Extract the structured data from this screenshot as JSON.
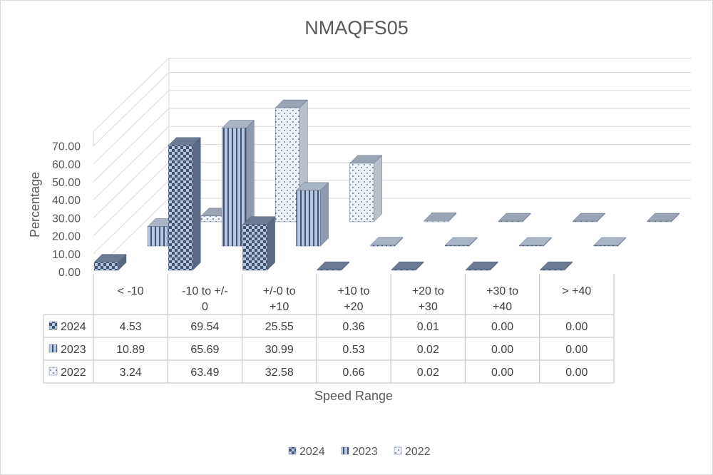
{
  "chart_data": {
    "type": "bar",
    "title": "NMAQFS05",
    "xlabel": "Speed Range",
    "ylabel": "Percentage",
    "y_ticks": [
      "0.00",
      "10.00",
      "20.00",
      "30.00",
      "40.00",
      "50.00",
      "60.00",
      "70.00"
    ],
    "ylim": [
      0,
      70
    ],
    "grid": true,
    "legend_position": "bottom",
    "categories": [
      "< -10",
      "-10 to +/-\n0",
      "+/-0 to\n+10",
      "+10 to\n+20",
      "+20 to\n+30",
      "+30 to\n+40",
      "> +40"
    ],
    "series": [
      {
        "name": "2024",
        "values": [
          4.53,
          69.54,
          25.55,
          0.36,
          0.01,
          0.0,
          0.0
        ],
        "labels": [
          "4.53",
          "69.54",
          "25.55",
          "0.36",
          "0.01",
          "0.00",
          "0.00"
        ],
        "pattern": "checker"
      },
      {
        "name": "2023",
        "values": [
          10.89,
          65.69,
          30.99,
          0.53,
          0.02,
          0.0,
          0.0
        ],
        "labels": [
          "10.89",
          "65.69",
          "30.99",
          "0.53",
          "0.02",
          "0.00",
          "0.00"
        ],
        "pattern": "stripes"
      },
      {
        "name": "2022",
        "values": [
          3.24,
          63.49,
          32.58,
          0.66,
          0.02,
          0.0,
          0.0
        ],
        "labels": [
          "3.24",
          "63.49",
          "32.58",
          "0.66",
          "0.02",
          "0.00",
          "0.00"
        ],
        "pattern": "dots"
      }
    ],
    "colors": {
      "dark": "#44546a",
      "light": "#b4c7e7",
      "pale": "#dae3f3",
      "grid": "#d9d9d9"
    }
  }
}
